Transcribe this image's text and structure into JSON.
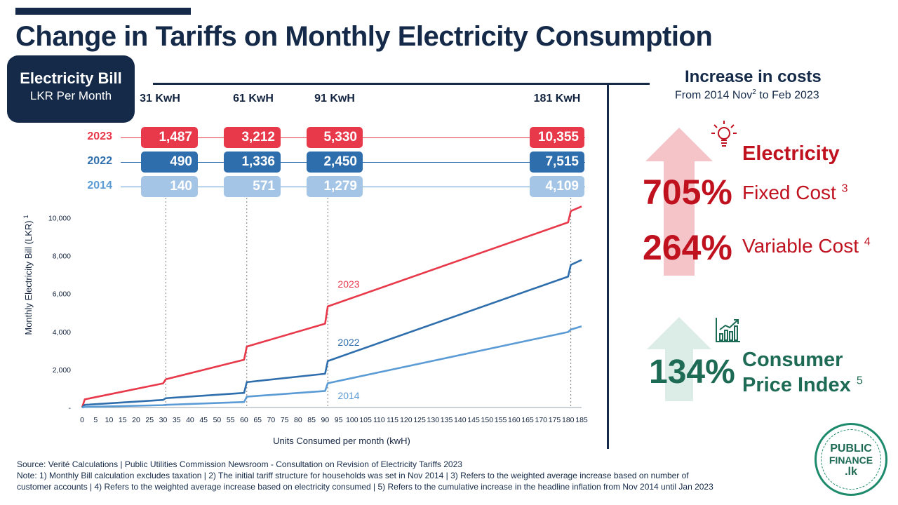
{
  "title": "Change in Tariffs on Monthly Electricity Consumption",
  "bill_box": {
    "line1": "Electricity Bill",
    "line2": "LKR Per Month"
  },
  "kwh_headers": [
    "31 KwH",
    "61 KwH",
    "91 KwH",
    "181 KwH"
  ],
  "table": {
    "rows": [
      {
        "year": "2023",
        "color": "#e8394a",
        "values": [
          "1,487",
          "3,212",
          "5,330",
          "10,355"
        ]
      },
      {
        "year": "2022",
        "color": "#2f6ead",
        "values": [
          "490",
          "1,336",
          "2,450",
          "7,515"
        ]
      },
      {
        "year": "2014",
        "color": "#a5c5e6",
        "label_color": "#5b9bd5",
        "values": [
          "140",
          "571",
          "1,279",
          "4,109"
        ]
      }
    ]
  },
  "increase": {
    "title": "Increase in costs",
    "subtitle_pre": "From 2014 Nov",
    "subtitle_sup": "2",
    "subtitle_post": " to Feb 2023",
    "electricity_label": "Electricity",
    "fixed_pct": "705%",
    "fixed_label": "Fixed Cost",
    "fixed_sup": "3",
    "variable_pct": "264%",
    "variable_label": "Variable Cost",
    "variable_sup": "4",
    "cpi_pct": "134%",
    "cpi_label1": "Consumer",
    "cpi_label2": "Price Index",
    "cpi_sup": "5",
    "red": "#c0111f",
    "green": "#1d6b54"
  },
  "logo": {
    "line1": "PUBLIC",
    "line2": "FINANCE",
    "line3": ".lk"
  },
  "source_lines": [
    "Source:  Verité Calculations | Public Utilities Commission Newsroom - Consultation on Revision of Electricity Tariffs 2023",
    "Note: 1) Monthly Bill calculation excludes  taxation | 2) The initial tariff structure  for households was set in Nov 2014 | 3) Refers to the weighted average increase based on number of",
    "customer accounts | 4) Refers to the weighted average increase based on electricity consumed | 5) Refers to the cumulative increase in the headline inflation from Nov 2014 until Jan 2023"
  ],
  "chart_data": {
    "type": "line",
    "title": "",
    "xlabel": "Units Consumed per month (kwH)",
    "ylabel": "Monthly Electricity Bill (LKR)",
    "ylabel_sup": "1",
    "xlim": [
      0,
      185
    ],
    "ylim": [
      0,
      10500
    ],
    "x_ticks": [
      "0",
      "5",
      "10",
      "15",
      "20",
      "25",
      "30",
      "35",
      "40",
      "45",
      "50",
      "55",
      "60",
      "65",
      "70",
      "75",
      "80",
      "85",
      "90",
      "95",
      "100",
      "105",
      "110",
      "115",
      "120",
      "125",
      "130",
      "135",
      "140",
      "145",
      "150",
      "155",
      "160",
      "165",
      "170",
      "175",
      "180",
      "185"
    ],
    "y_ticks": [
      {
        "value": 0,
        "label": "-"
      },
      {
        "value": 2000,
        "label": "2,000"
      },
      {
        "value": 4000,
        "label": "4,000"
      },
      {
        "value": 6000,
        "label": "6,000"
      },
      {
        "value": 8000,
        "label": "8,000"
      },
      {
        "value": 10000,
        "label": "10,000"
      }
    ],
    "reference_x": [
      31,
      61,
      91,
      181
    ],
    "series": [
      {
        "name": "2023",
        "color": "#e8394a",
        "points": [
          [
            0,
            0
          ],
          [
            1,
            430
          ],
          [
            30,
            1270
          ],
          [
            31,
            1487
          ],
          [
            60,
            2520
          ],
          [
            61,
            3212
          ],
          [
            90,
            4420
          ],
          [
            91,
            5330
          ],
          [
            180,
            9760
          ],
          [
            181,
            10355
          ],
          [
            185,
            10600
          ]
        ]
      },
      {
        "name": "2022",
        "color": "#2f6ead",
        "points": [
          [
            0,
            0
          ],
          [
            1,
            140
          ],
          [
            30,
            400
          ],
          [
            31,
            490
          ],
          [
            60,
            770
          ],
          [
            61,
            1336
          ],
          [
            90,
            1780
          ],
          [
            91,
            2450
          ],
          [
            180,
            6900
          ],
          [
            181,
            7515
          ],
          [
            185,
            7780
          ]
        ]
      },
      {
        "name": "2014",
        "color": "#5b9bd5",
        "points": [
          [
            0,
            0
          ],
          [
            1,
            30
          ],
          [
            30,
            125
          ],
          [
            31,
            140
          ],
          [
            60,
            290
          ],
          [
            61,
            571
          ],
          [
            90,
            870
          ],
          [
            91,
            1279
          ],
          [
            180,
            3980
          ],
          [
            181,
            4109
          ],
          [
            185,
            4280
          ]
        ]
      }
    ]
  }
}
